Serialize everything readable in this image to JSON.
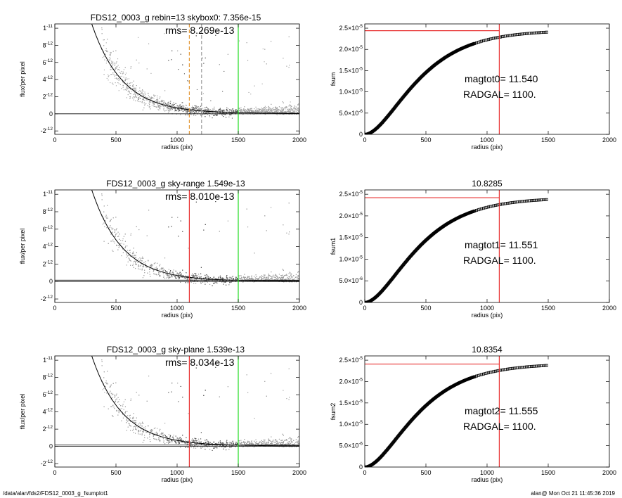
{
  "footer": {
    "left": "/data/alan/fds2/FDS12_0003_g_fsumplot1",
    "right": "alan@  Mon Oct 21 11:45:36 2019"
  },
  "colors": {
    "red": "#e83030",
    "green": "#22dd22",
    "orange": "#e49a3a",
    "points_light": "#a0a0a0",
    "points_dark": "#505050"
  },
  "chart_data": [
    {
      "type": "scatter",
      "title": "FDS12_0003_g rebin=13    skybox0:  7.356e-15",
      "annotation": "rms= 8.269e-13",
      "xlabel": "radius (pix)",
      "ylabel": "flux/per pixel",
      "xlim": [
        0,
        2000
      ],
      "ylim": [
        -2.4e-12,
        1.05e-11
      ],
      "xticks": [
        0,
        500,
        1000,
        1500,
        2000
      ],
      "yticks": [
        {
          "value": -2e-12,
          "m": "-2",
          "e": "-12"
        },
        {
          "value": 0,
          "m": "0",
          "e": ""
        },
        {
          "value": 2e-12,
          "m": "2",
          "e": "-12"
        },
        {
          "value": 4e-12,
          "m": "4",
          "e": "-12"
        },
        {
          "value": 6e-12,
          "m": "6",
          "e": "-12"
        },
        {
          "value": 8e-12,
          "m": "8",
          "e": "-12"
        },
        {
          "value": 1e-11,
          "m": "1",
          "e": "-11"
        }
      ],
      "vlines": [
        {
          "x": 1100,
          "color": "orange",
          "dash": true
        },
        {
          "x": 1200,
          "color": "gray",
          "dash": true
        },
        {
          "x": 1500,
          "color": "green",
          "dash": false
        }
      ],
      "hlines": [
        0
      ],
      "profile": {
        "amp": 3.5e-11,
        "scale": 250,
        "floor": 5e-14
      }
    },
    {
      "type": "line",
      "title": "",
      "xlabel": "radius (pix)",
      "ylabel": "fsum",
      "xlim": [
        0,
        2000
      ],
      "ylim": [
        0,
        2.6e-05
      ],
      "xticks": [
        0,
        500,
        1000,
        1500,
        2000
      ],
      "yticks": [
        {
          "value": 0,
          "m": "0",
          "e": ""
        },
        {
          "value": 5e-06,
          "m": "5.0×10",
          "e": "-6"
        },
        {
          "value": 1e-05,
          "m": "1.0×10",
          "e": "-5"
        },
        {
          "value": 1.5e-05,
          "m": "1.5×10",
          "e": "-5"
        },
        {
          "value": 2e-05,
          "m": "2.0×10",
          "e": "-5"
        },
        {
          "value": 2.5e-05,
          "m": "2.5×10",
          "e": "-5"
        }
      ],
      "text1": "magtot0=  11.540",
      "text2": "RADGAL=   1100.",
      "vline": 1100,
      "hline": 2.44e-05,
      "curve": {
        "total": 2.45e-05,
        "scale": 250,
        "xmax": 1500
      }
    },
    {
      "type": "scatter",
      "title": "FDS12_0003_g sky-range  1.549e-13",
      "annotation": "rms= 8.010e-13",
      "xlabel": "radius (pix)",
      "ylabel": "flux/per pixel",
      "xlim": [
        0,
        2000
      ],
      "ylim": [
        -2.4e-12,
        1.05e-11
      ],
      "xticks": [
        0,
        500,
        1000,
        1500,
        2000
      ],
      "yticks": [
        {
          "value": -2e-12,
          "m": "-2",
          "e": "-12"
        },
        {
          "value": 0,
          "m": "0",
          "e": ""
        },
        {
          "value": 2e-12,
          "m": "2",
          "e": "-12"
        },
        {
          "value": 4e-12,
          "m": "4",
          "e": "-12"
        },
        {
          "value": 6e-12,
          "m": "6",
          "e": "-12"
        },
        {
          "value": 8e-12,
          "m": "8",
          "e": "-12"
        },
        {
          "value": 1e-11,
          "m": "1",
          "e": "-11"
        }
      ],
      "vlines": [
        {
          "x": 1100,
          "color": "red",
          "dash": false
        },
        {
          "x": 1500,
          "color": "green",
          "dash": false
        }
      ],
      "hlines": [
        0,
        1.549e-13
      ],
      "profile": {
        "amp": 3.5e-11,
        "scale": 250,
        "floor": 5e-14
      }
    },
    {
      "type": "line",
      "title": "10.8285",
      "xlabel": "radius (pix)",
      "ylabel": "fsum1",
      "xlim": [
        0,
        2000
      ],
      "ylim": [
        0,
        2.6e-05
      ],
      "xticks": [
        0,
        500,
        1000,
        1500,
        2000
      ],
      "yticks": [
        {
          "value": 0,
          "m": "0",
          "e": ""
        },
        {
          "value": 5e-06,
          "m": "5.0×10",
          "e": "-6"
        },
        {
          "value": 1e-05,
          "m": "1.0×10",
          "e": "-5"
        },
        {
          "value": 1.5e-05,
          "m": "1.5×10",
          "e": "-5"
        },
        {
          "value": 2e-05,
          "m": "2.0×10",
          "e": "-5"
        },
        {
          "value": 2.5e-05,
          "m": "2.5×10",
          "e": "-5"
        }
      ],
      "text1": "magtot1=  11.551",
      "text2": "RADGAL=   1100.",
      "vline": 1100,
      "hline": 2.42e-05,
      "curve": {
        "total": 2.42e-05,
        "scale": 250,
        "xmax": 1500
      }
    },
    {
      "type": "scatter",
      "title": "FDS12_0003_g sky-plane  1.539e-13",
      "annotation": "rms= 8.034e-13",
      "xlabel": "radius (pix)",
      "ylabel": "flux/per pixel",
      "xlim": [
        0,
        2000
      ],
      "ylim": [
        -2.4e-12,
        1.05e-11
      ],
      "xticks": [
        0,
        500,
        1000,
        1500,
        2000
      ],
      "yticks": [
        {
          "value": -2e-12,
          "m": "-2",
          "e": "-12"
        },
        {
          "value": 0,
          "m": "0",
          "e": ""
        },
        {
          "value": 2e-12,
          "m": "2",
          "e": "-12"
        },
        {
          "value": 4e-12,
          "m": "4",
          "e": "-12"
        },
        {
          "value": 6e-12,
          "m": "6",
          "e": "-12"
        },
        {
          "value": 8e-12,
          "m": "8",
          "e": "-12"
        },
        {
          "value": 1e-11,
          "m": "1",
          "e": "-11"
        }
      ],
      "vlines": [
        {
          "x": 1100,
          "color": "red",
          "dash": false
        },
        {
          "x": 1500,
          "color": "green",
          "dash": false
        }
      ],
      "hlines": [
        0,
        1.539e-13
      ],
      "profile": {
        "amp": 3.5e-11,
        "scale": 250,
        "floor": 5e-14
      }
    },
    {
      "type": "line",
      "title": "10.8354",
      "xlabel": "radius (pix)",
      "ylabel": "fsum2",
      "xlim": [
        0,
        2000
      ],
      "ylim": [
        0,
        2.6e-05
      ],
      "xticks": [
        0,
        500,
        1000,
        1500,
        2000
      ],
      "yticks": [
        {
          "value": 0,
          "m": "0",
          "e": ""
        },
        {
          "value": 5e-06,
          "m": "5.0×10",
          "e": "-6"
        },
        {
          "value": 1e-05,
          "m": "1.0×10",
          "e": "-5"
        },
        {
          "value": 1.5e-05,
          "m": "1.5×10",
          "e": "-5"
        },
        {
          "value": 2e-05,
          "m": "2.0×10",
          "e": "-5"
        },
        {
          "value": 2.5e-05,
          "m": "2.5×10",
          "e": "-5"
        }
      ],
      "text1": "magtot2=  11.555",
      "text2": "RADGAL=   1100.",
      "vline": 1100,
      "hline": 2.41e-05,
      "curve": {
        "total": 2.42e-05,
        "scale": 250,
        "xmax": 1500
      }
    }
  ]
}
